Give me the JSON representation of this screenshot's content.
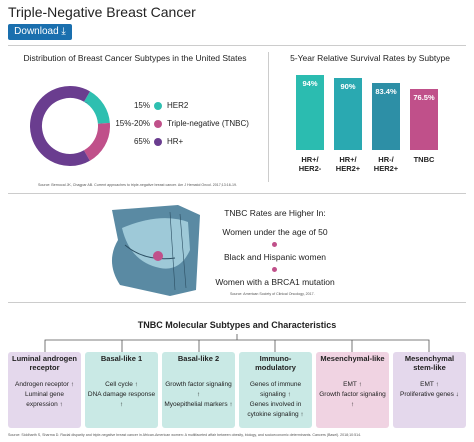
{
  "header": {
    "title": "Triple-Negative Breast Cancer",
    "button": "Download"
  },
  "chart_data": [
    {
      "type": "donut",
      "title": "Distribution of Breast Cancer Subtypes in the United States",
      "categories": [
        "HER2",
        "Triple-negative (TNBC)",
        "HR+"
      ],
      "values": [
        15,
        17.5,
        65
      ],
      "value_labels": [
        "15%",
        "15%-20%",
        "65%"
      ],
      "colors": [
        "#2ebfb0",
        "#c0508a",
        "#6a3d8f"
      ],
      "source": "Source: Bernocal JK, Chagpar AB. Current approaches to triple-negative breast cancer. Am J Hematol Oncol. 2017;13:16-19."
    },
    {
      "type": "bar",
      "title": "5-Year Relative Survival Rates by Subtype",
      "categories": [
        "HR+/ HER2-",
        "HR+/ HER2+",
        "HR-/ HER2+",
        "TNBC"
      ],
      "values": [
        94,
        90,
        83.4,
        76.5
      ],
      "value_labels": [
        "94%",
        "90%",
        "83.4%",
        "76.5%"
      ],
      "colors": [
        "#2bbcb0",
        "#2aa9b1",
        "#2d8fa6",
        "#c0508a"
      ]
    }
  ],
  "risk": {
    "title": "TNBC Rates are Higher In:",
    "items": [
      "Women under the age of 50",
      "Black and Hispanic women",
      "Women with a BRCA1 mutation"
    ],
    "source": "Source: American Society of Clinical Oncology, 2017."
  },
  "subtypes": {
    "title": "TNBC Molecular Subtypes and Characteristics",
    "cards": [
      {
        "name": "Luminal androgen receptor",
        "color": "#e4d8ec",
        "items": [
          "Androgen receptor ↑",
          "Luminal gene expression ↑"
        ]
      },
      {
        "name": "Basal-like 1",
        "color": "#c9e9e5",
        "items": [
          "Cell cycle ↑",
          "DNA damage response ↑"
        ]
      },
      {
        "name": "Basal-like 2",
        "color": "#c9e9e5",
        "items": [
          "Growth factor signaling ↑",
          "Myoepithelial markers ↑"
        ]
      },
      {
        "name": "Immuno-modulatory",
        "color": "#c9e9e5",
        "items": [
          "Genes of immune signaling ↑",
          "Genes involved in cytokine signaling ↑"
        ]
      },
      {
        "name": "Mesenchymal-like",
        "color": "#f0d3e2",
        "items": [
          "EMT ↑",
          "Growth factor signaling ↑"
        ]
      },
      {
        "name": "Mesenchymal stem-like",
        "color": "#e4d8ec",
        "items": [
          "EMT ↑",
          "Proliferative genes ↓"
        ]
      }
    ],
    "source": "Source: Siddharth S, Sharma D. Racial disparity and triple-negative breast cancer in African-American women: A multifaceted affair between obesity, biology, and socioeconomic determinants. Cancers (Basel). 2018;10:514."
  }
}
